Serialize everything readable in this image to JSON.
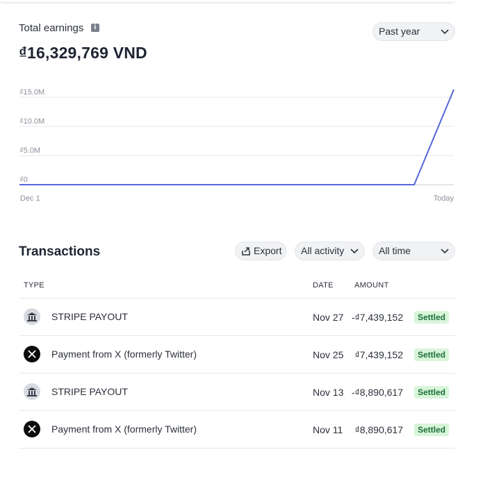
{
  "earnings": {
    "label": "Total earnings",
    "info_icon": "info-icon",
    "amount": "₫16,329,769 VND",
    "range_selected": "Past year"
  },
  "chart_data": {
    "type": "line",
    "y_tick_labels": [
      "₫15.0M",
      "₫10.0M",
      "₫5.0M",
      "₫0"
    ],
    "x_tick_labels": [
      "Dec 1",
      "Today"
    ],
    "ylim": [
      0,
      16000000
    ],
    "series": [
      {
        "x": [
          "Dec 1",
          "Nov 9",
          "Today"
        ],
        "values": [
          0,
          0,
          16329769
        ]
      }
    ],
    "line_color": "#5566d8",
    "grid": true
  },
  "transactions": {
    "title": "Transactions",
    "export_label": "Export",
    "activity_selected": "All activity",
    "time_selected": "All time",
    "columns": {
      "type": "TYPE",
      "date": "DATE",
      "amount": "AMOUNT"
    },
    "rows": [
      {
        "icon": "bank-icon",
        "type": "STRIPE PAYOUT",
        "date": "Nov 27",
        "amount": "-₫7,439,152",
        "status": "Settled"
      },
      {
        "icon": "x-logo-icon",
        "type": "Payment from X (formerly Twitter)",
        "date": "Nov 25",
        "amount": "₫7,439,152",
        "status": "Settled"
      },
      {
        "icon": "bank-icon",
        "type": "STRIPE PAYOUT",
        "date": "Nov 13",
        "amount": "-₫8,890,617",
        "status": "Settled"
      },
      {
        "icon": "x-logo-icon",
        "type": "Payment from X (formerly Twitter)",
        "date": "Nov 11",
        "amount": "₫8,890,617",
        "status": "Settled"
      }
    ]
  },
  "colors": {
    "accent_line": "#5566d8",
    "settled_bg": "#d7f5d9",
    "settled_text": "#1e6f3a"
  }
}
